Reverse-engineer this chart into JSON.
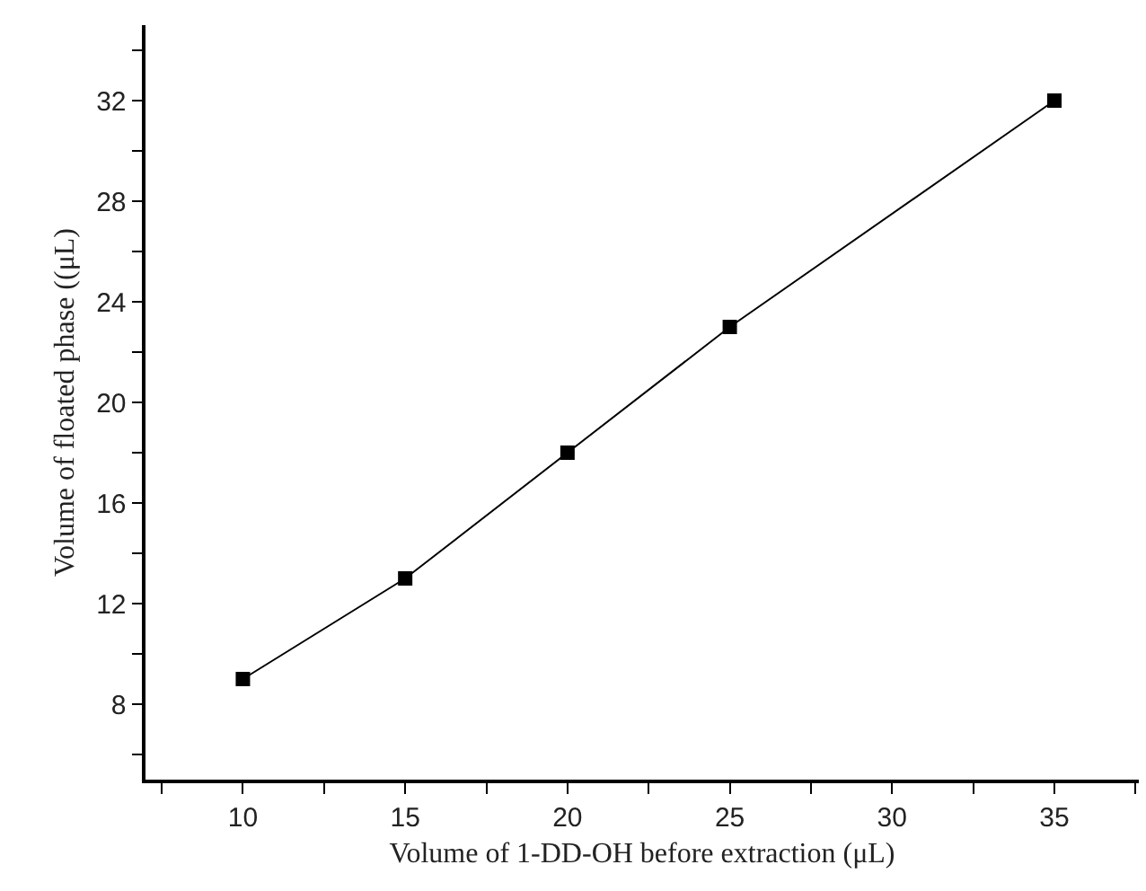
{
  "chart_data": {
    "type": "line",
    "xlabel": "Volume of 1-DD-OH before extraction (μL)",
    "ylabel": "Volume of floated phase ((μL)",
    "x": [
      10,
      15,
      20,
      25,
      35
    ],
    "series": [
      {
        "color": "#000000",
        "values": [
          9,
          13,
          18,
          23,
          32
        ]
      }
    ],
    "marker": "square",
    "line_style": "solid",
    "xlim": [
      7,
      37.6
    ],
    "xticks": [
      {
        "value": 7.5,
        "label": null
      },
      10,
      {
        "value": 12.5,
        "label": null
      },
      15,
      {
        "value": 17.5,
        "label": null
      },
      20,
      {
        "value": 22.5,
        "label": null
      },
      25,
      {
        "value": 27.5,
        "label": null
      },
      30,
      {
        "value": 32.5,
        "label": null
      },
      35,
      {
        "value": 37.5,
        "label": null
      }
    ],
    "ylim": [
      5,
      35
    ],
    "yticks": [
      {
        "value": 6,
        "label": null
      },
      8,
      {
        "value": 10,
        "label": null
      },
      12,
      {
        "value": 14,
        "label": null
      },
      16,
      {
        "value": 18,
        "label": null
      },
      20,
      {
        "value": 22,
        "label": null
      },
      24,
      {
        "value": 26,
        "label": null
      },
      28,
      {
        "value": 30,
        "label": null
      },
      32,
      {
        "value": 34,
        "label": null
      }
    ]
  }
}
